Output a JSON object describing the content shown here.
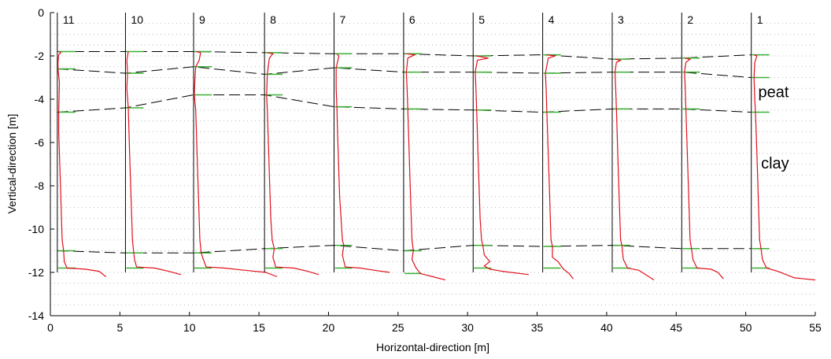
{
  "chart_data": {
    "type": "line",
    "xlabel": "Horizontal-direction [m]",
    "ylabel": "Vertical-direction [m]",
    "xlim": [
      0,
      55
    ],
    "ylim": [
      -14,
      0
    ],
    "x_ticks": [
      "0",
      "5",
      "10",
      "15",
      "20",
      "25",
      "30",
      "35",
      "40",
      "45",
      "50",
      "55"
    ],
    "y_ticks": [
      "0",
      "-2",
      "-4",
      "-6",
      "-8",
      "-10",
      "-12",
      "-14"
    ],
    "grid": "dotted horizontal, every 0.5 m",
    "profile_line_color": "#e0111b",
    "marker_color": "#3cb034",
    "boundary_color": "#000000",
    "profiles": [
      {
        "label": "11",
        "x": 0.5,
        "bottom": -12.0,
        "markers": [
          -1.8,
          -2.6,
          -4.6,
          -11.0,
          -11.8
        ],
        "curve": [
          [
            0.6,
            -1.8
          ],
          [
            0.75,
            -1.85
          ],
          [
            0.6,
            -1.95
          ],
          [
            0.55,
            -2.3
          ],
          [
            0.55,
            -2.6
          ],
          [
            0.65,
            -3.2
          ],
          [
            0.6,
            -4.6
          ],
          [
            0.6,
            -5.5
          ],
          [
            0.65,
            -6.5
          ],
          [
            0.7,
            -7.5
          ],
          [
            0.75,
            -8.5
          ],
          [
            0.8,
            -9.5
          ],
          [
            0.85,
            -10.5
          ],
          [
            0.95,
            -11.0
          ],
          [
            1.0,
            -11.5
          ],
          [
            1.2,
            -11.8
          ],
          [
            2.5,
            -11.85
          ],
          [
            3.5,
            -11.95
          ],
          [
            4.0,
            -12.2
          ]
        ]
      },
      {
        "label": "10",
        "x": 5.4,
        "bottom": -12.0,
        "markers": [
          -1.8,
          -2.8,
          -4.4,
          -11.1,
          -11.8
        ],
        "curve": [
          [
            5.6,
            -1.8
          ],
          [
            5.5,
            -2.2
          ],
          [
            5.55,
            -2.8
          ],
          [
            5.5,
            -3.5
          ],
          [
            5.6,
            -4.4
          ],
          [
            5.65,
            -5.5
          ],
          [
            5.7,
            -6.5
          ],
          [
            5.75,
            -7.5
          ],
          [
            5.8,
            -8.5
          ],
          [
            5.85,
            -9.5
          ],
          [
            5.9,
            -10.5
          ],
          [
            6.0,
            -11.1
          ],
          [
            6.05,
            -11.4
          ],
          [
            6.2,
            -11.75
          ],
          [
            7.5,
            -11.8
          ],
          [
            8.5,
            -11.95
          ],
          [
            9.4,
            -12.1
          ]
        ]
      },
      {
        "label": "9",
        "x": 10.3,
        "bottom": -12.0,
        "markers": [
          -1.8,
          -2.5,
          -3.8,
          -11.1,
          -11.8
        ],
        "curve": [
          [
            10.5,
            -1.8
          ],
          [
            10.8,
            -1.85
          ],
          [
            10.7,
            -2.2
          ],
          [
            10.45,
            -2.5
          ],
          [
            10.4,
            -3.0
          ],
          [
            10.35,
            -3.8
          ],
          [
            10.45,
            -4.5
          ],
          [
            10.5,
            -5.5
          ],
          [
            10.55,
            -6.5
          ],
          [
            10.6,
            -7.5
          ],
          [
            10.65,
            -8.5
          ],
          [
            10.7,
            -9.5
          ],
          [
            10.75,
            -10.5
          ],
          [
            10.85,
            -11.1
          ],
          [
            11.0,
            -11.4
          ],
          [
            11.2,
            -11.75
          ],
          [
            12.5,
            -11.8
          ],
          [
            14.0,
            -11.9
          ],
          [
            15.5,
            -12.0
          ],
          [
            16.3,
            -12.2
          ]
        ]
      },
      {
        "label": "8",
        "x": 15.4,
        "bottom": -12.0,
        "markers": [
          -1.85,
          -2.85,
          -3.8,
          -10.9,
          -11.8
        ],
        "curve": [
          [
            15.6,
            -1.85
          ],
          [
            16.0,
            -1.9
          ],
          [
            15.75,
            -2.1
          ],
          [
            15.6,
            -2.85
          ],
          [
            15.55,
            -3.8
          ],
          [
            15.6,
            -4.5
          ],
          [
            15.65,
            -5.5
          ],
          [
            15.7,
            -6.5
          ],
          [
            15.75,
            -7.5
          ],
          [
            15.8,
            -8.5
          ],
          [
            15.85,
            -9.5
          ],
          [
            15.95,
            -10.5
          ],
          [
            16.1,
            -10.9
          ],
          [
            16.0,
            -11.3
          ],
          [
            16.2,
            -11.75
          ],
          [
            17.5,
            -11.8
          ],
          [
            18.5,
            -11.95
          ],
          [
            19.3,
            -12.1
          ]
        ]
      },
      {
        "label": "7",
        "x": 20.4,
        "bottom": -12.0,
        "markers": [
          -1.9,
          -2.55,
          -4.35,
          -10.75,
          -11.8
        ],
        "curve": [
          [
            20.6,
            -1.9
          ],
          [
            20.75,
            -2.0
          ],
          [
            20.55,
            -2.55
          ],
          [
            20.55,
            -3.5
          ],
          [
            20.6,
            -4.35
          ],
          [
            20.65,
            -5.5
          ],
          [
            20.7,
            -6.5
          ],
          [
            20.75,
            -7.5
          ],
          [
            20.8,
            -8.5
          ],
          [
            20.9,
            -9.5
          ],
          [
            21.0,
            -10.5
          ],
          [
            21.1,
            -10.75
          ],
          [
            21.0,
            -11.2
          ],
          [
            21.2,
            -11.75
          ],
          [
            22.3,
            -11.8
          ],
          [
            23.3,
            -11.9
          ],
          [
            24.4,
            -12.0
          ]
        ]
      },
      {
        "label": "6",
        "x": 25.4,
        "bottom": -12.0,
        "markers": [
          -1.9,
          -2.75,
          -4.45,
          -11.0,
          -12.05
        ],
        "curve": [
          [
            25.6,
            -1.9
          ],
          [
            26.2,
            -1.95
          ],
          [
            25.7,
            -2.1
          ],
          [
            25.6,
            -2.75
          ],
          [
            25.65,
            -3.5
          ],
          [
            25.7,
            -4.45
          ],
          [
            25.75,
            -5.5
          ],
          [
            25.8,
            -6.5
          ],
          [
            25.85,
            -7.5
          ],
          [
            25.9,
            -8.5
          ],
          [
            25.95,
            -9.5
          ],
          [
            26.0,
            -10.5
          ],
          [
            26.1,
            -11.0
          ],
          [
            26.0,
            -11.4
          ],
          [
            26.3,
            -11.8
          ],
          [
            26.6,
            -12.05
          ],
          [
            27.5,
            -12.2
          ],
          [
            28.4,
            -12.35
          ]
        ]
      },
      {
        "label": "5",
        "x": 30.4,
        "bottom": -12.0,
        "markers": [
          -2.0,
          -2.75,
          -4.5,
          -10.75,
          -11.8
        ],
        "curve": [
          [
            30.6,
            -2.0
          ],
          [
            31.5,
            -2.1
          ],
          [
            30.7,
            -2.2
          ],
          [
            30.55,
            -2.75
          ],
          [
            30.6,
            -3.5
          ],
          [
            30.65,
            -4.5
          ],
          [
            30.7,
            -5.5
          ],
          [
            30.75,
            -6.5
          ],
          [
            30.8,
            -7.5
          ],
          [
            30.85,
            -8.5
          ],
          [
            30.9,
            -9.5
          ],
          [
            31.0,
            -10.5
          ],
          [
            31.1,
            -10.75
          ],
          [
            31.2,
            -11.2
          ],
          [
            31.6,
            -11.5
          ],
          [
            31.2,
            -11.7
          ],
          [
            31.6,
            -11.85
          ],
          [
            32.5,
            -11.95
          ],
          [
            34.4,
            -12.1
          ]
        ]
      },
      {
        "label": "4",
        "x": 35.4,
        "bottom": -12.0,
        "markers": [
          -1.95,
          -2.8,
          -4.6,
          -10.8,
          -11.8
        ],
        "curve": [
          [
            35.7,
            -1.95
          ],
          [
            36.3,
            -2.0
          ],
          [
            35.8,
            -2.1
          ],
          [
            35.6,
            -2.8
          ],
          [
            35.65,
            -3.5
          ],
          [
            35.7,
            -4.6
          ],
          [
            35.75,
            -5.5
          ],
          [
            35.8,
            -6.5
          ],
          [
            35.85,
            -7.5
          ],
          [
            35.9,
            -8.5
          ],
          [
            35.95,
            -9.5
          ],
          [
            36.0,
            -10.5
          ],
          [
            36.1,
            -10.8
          ],
          [
            36.1,
            -11.3
          ],
          [
            36.5,
            -11.5
          ],
          [
            36.9,
            -11.85
          ],
          [
            37.3,
            -12.05
          ],
          [
            37.6,
            -12.3
          ]
        ]
      },
      {
        "label": "3",
        "x": 40.4,
        "bottom": -12.0,
        "markers": [
          -2.15,
          -2.75,
          -4.45,
          -10.75,
          -11.8
        ],
        "curve": [
          [
            40.6,
            -2.15
          ],
          [
            41.0,
            -2.2
          ],
          [
            40.7,
            -2.3
          ],
          [
            40.6,
            -2.75
          ],
          [
            40.65,
            -3.5
          ],
          [
            40.7,
            -4.45
          ],
          [
            40.75,
            -5.5
          ],
          [
            40.8,
            -6.5
          ],
          [
            40.85,
            -7.5
          ],
          [
            40.9,
            -8.5
          ],
          [
            40.95,
            -9.5
          ],
          [
            41.0,
            -10.5
          ],
          [
            41.1,
            -10.75
          ],
          [
            41.2,
            -11.4
          ],
          [
            41.5,
            -11.8
          ],
          [
            42.3,
            -11.9
          ],
          [
            42.8,
            -12.1
          ],
          [
            43.4,
            -12.35
          ]
        ]
      },
      {
        "label": "2",
        "x": 45.4,
        "bottom": -12.0,
        "markers": [
          -2.1,
          -2.75,
          -4.45,
          -10.9,
          -11.8
        ],
        "curve": [
          [
            45.6,
            -2.1
          ],
          [
            46.0,
            -2.15
          ],
          [
            45.7,
            -2.3
          ],
          [
            45.6,
            -2.75
          ],
          [
            45.65,
            -3.5
          ],
          [
            45.7,
            -4.45
          ],
          [
            45.75,
            -5.5
          ],
          [
            45.8,
            -6.5
          ],
          [
            45.85,
            -7.5
          ],
          [
            45.9,
            -8.5
          ],
          [
            45.95,
            -9.5
          ],
          [
            46.0,
            -10.5
          ],
          [
            46.1,
            -10.9
          ],
          [
            46.2,
            -11.4
          ],
          [
            46.5,
            -11.8
          ],
          [
            47.5,
            -11.85
          ],
          [
            48.0,
            -12.0
          ],
          [
            48.4,
            -12.3
          ]
        ]
      },
      {
        "label": "1",
        "x": 50.4,
        "bottom": -12.0,
        "markers": [
          -1.95,
          -3.0,
          -4.6,
          -10.9,
          -11.8
        ],
        "curve": [
          [
            50.6,
            -1.95
          ],
          [
            50.8,
            -2.0
          ],
          [
            50.65,
            -2.3
          ],
          [
            50.6,
            -3.0
          ],
          [
            50.65,
            -4.0
          ],
          [
            50.7,
            -4.6
          ],
          [
            50.75,
            -5.5
          ],
          [
            50.8,
            -6.5
          ],
          [
            50.85,
            -7.5
          ],
          [
            50.9,
            -8.5
          ],
          [
            50.95,
            -9.5
          ],
          [
            51.0,
            -10.5
          ],
          [
            51.1,
            -10.9
          ],
          [
            51.2,
            -11.4
          ],
          [
            51.5,
            -11.8
          ],
          [
            52.3,
            -11.95
          ],
          [
            53.5,
            -12.25
          ],
          [
            55.0,
            -12.35
          ]
        ]
      }
    ],
    "boundaries": [
      {
        "points": [
          [
            0.5,
            -1.8
          ],
          [
            5.4,
            -1.8
          ],
          [
            10.3,
            -1.8
          ],
          [
            15.4,
            -1.85
          ],
          [
            20.4,
            -1.9
          ],
          [
            25.4,
            -1.9
          ],
          [
            30.4,
            -2.0
          ],
          [
            35.4,
            -1.95
          ],
          [
            40.4,
            -2.15
          ],
          [
            45.4,
            -2.1
          ],
          [
            50.4,
            -1.95
          ]
        ]
      },
      {
        "points": [
          [
            0.5,
            -2.6
          ],
          [
            5.4,
            -2.8
          ],
          [
            10.3,
            -2.5
          ],
          [
            15.4,
            -2.85
          ],
          [
            20.4,
            -2.55
          ],
          [
            25.4,
            -2.75
          ],
          [
            30.4,
            -2.75
          ],
          [
            35.4,
            -2.8
          ],
          [
            40.4,
            -2.75
          ],
          [
            45.4,
            -2.75
          ],
          [
            50.4,
            -3.0
          ]
        ]
      },
      {
        "points": [
          [
            0.5,
            -4.6
          ],
          [
            5.4,
            -4.4
          ],
          [
            10.3,
            -3.8
          ],
          [
            15.4,
            -3.8
          ],
          [
            20.4,
            -4.35
          ],
          [
            25.4,
            -4.45
          ],
          [
            30.4,
            -4.5
          ],
          [
            35.4,
            -4.6
          ],
          [
            40.4,
            -4.45
          ],
          [
            45.4,
            -4.45
          ],
          [
            50.4,
            -4.6
          ]
        ]
      },
      {
        "points": [
          [
            0.5,
            -11.0
          ],
          [
            5.4,
            -11.1
          ],
          [
            10.3,
            -11.1
          ],
          [
            15.4,
            -10.9
          ],
          [
            20.4,
            -10.75
          ],
          [
            25.4,
            -11.0
          ],
          [
            30.4,
            -10.75
          ],
          [
            35.4,
            -10.8
          ],
          [
            40.4,
            -10.75
          ],
          [
            45.4,
            -10.9
          ],
          [
            50.4,
            -10.9
          ]
        ]
      }
    ],
    "annotations": [
      {
        "text": "peat",
        "x": 50.9,
        "y": -3.9
      },
      {
        "text": "clay",
        "x": 51.1,
        "y": -7.2
      }
    ]
  }
}
